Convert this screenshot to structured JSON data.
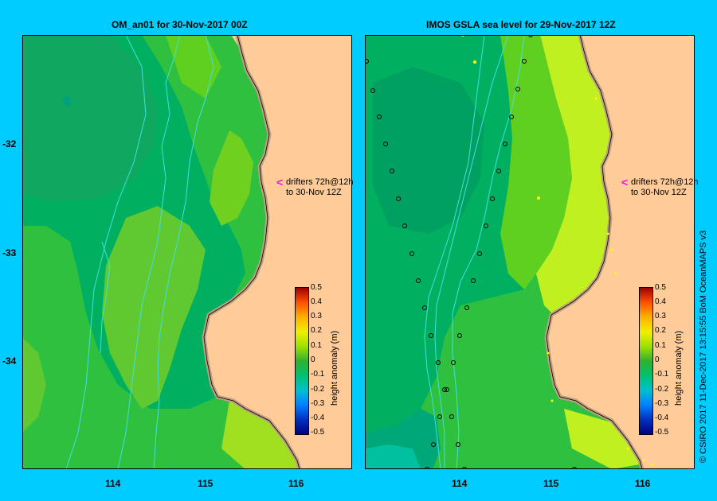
{
  "panels": [
    {
      "title": "OM_an01  for 30-Nov-2017 00Z"
    },
    {
      "title": "IMOS GSLA sea level  for 29-Nov-2017 12Z"
    }
  ],
  "y_ticks": [
    "-32",
    "-33",
    "-34"
  ],
  "x_ticks": [
    "114",
    "115",
    "116"
  ],
  "annotation": {
    "arrow": "<",
    "line1": "drifters 72h@12h",
    "line2": "to 30-Nov 12Z"
  },
  "colorbar": {
    "label": "height anomaly (m)",
    "ticks": [
      "0.5",
      "0.4",
      "0.3",
      "0.2",
      "0.1",
      "0",
      "-0.1",
      "-0.2",
      "-0.3",
      "-0.4",
      "-0.5"
    ]
  },
  "credit": "© CSIRO 2017   11-Dec-2017 13:15:55 BoM OceanMAPS v3",
  "colors": {
    "background": "#00ccff",
    "land": "#ffcc99",
    "coast": "#c0a080",
    "green_dark": "#00b060",
    "green": "#20c040",
    "green_light": "#60d020",
    "yellow_green": "#c0f020",
    "isobath": "#40e0e0",
    "marker": "#ff00ff"
  }
}
